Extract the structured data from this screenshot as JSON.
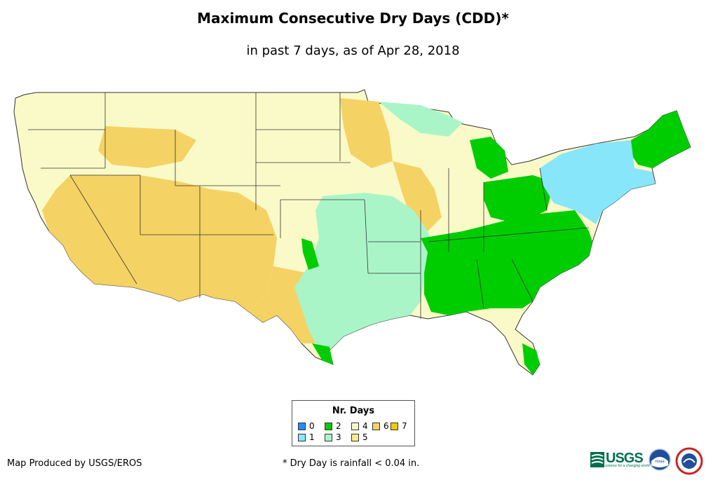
{
  "header": {
    "title": "Maximum Consecutive Dry Days (CDD)*",
    "subtitle": "in past 7 days, as of Apr 28, 2018"
  },
  "legend": {
    "title": "Nr. Days",
    "items": [
      {
        "label": "0",
        "color": "#1e90ff"
      },
      {
        "label": "1",
        "color": "#87e6fa"
      },
      {
        "label": "2",
        "color": "#00cd00"
      },
      {
        "label": "3",
        "color": "#aaf5c8"
      },
      {
        "label": "4",
        "color": "#fafac8"
      },
      {
        "label": "5",
        "color": "#faeb8c"
      },
      {
        "label": "6",
        "color": "#f5d264"
      },
      {
        "label": "7",
        "color": "#f5c800"
      }
    ]
  },
  "footer": {
    "credit": "Map Produced by USGS/EROS",
    "note": "* Dry Day is rainfall < 0.04 in."
  },
  "logos": {
    "usgs_text": "USGS",
    "usgs_tagline": "science for a changing world",
    "noaa_text": "noaa",
    "nws_name": "nws-logo"
  },
  "map": {
    "region": "conterminous-united-states",
    "colors": {
      "zero": "#1e90ff",
      "one": "#87e6fa",
      "two": "#00cd00",
      "three": "#aaf5c8",
      "four": "#fafac8",
      "five": "#faeb8c",
      "six": "#f5d264",
      "seven": "#f5c800",
      "border": "#333333"
    }
  }
}
